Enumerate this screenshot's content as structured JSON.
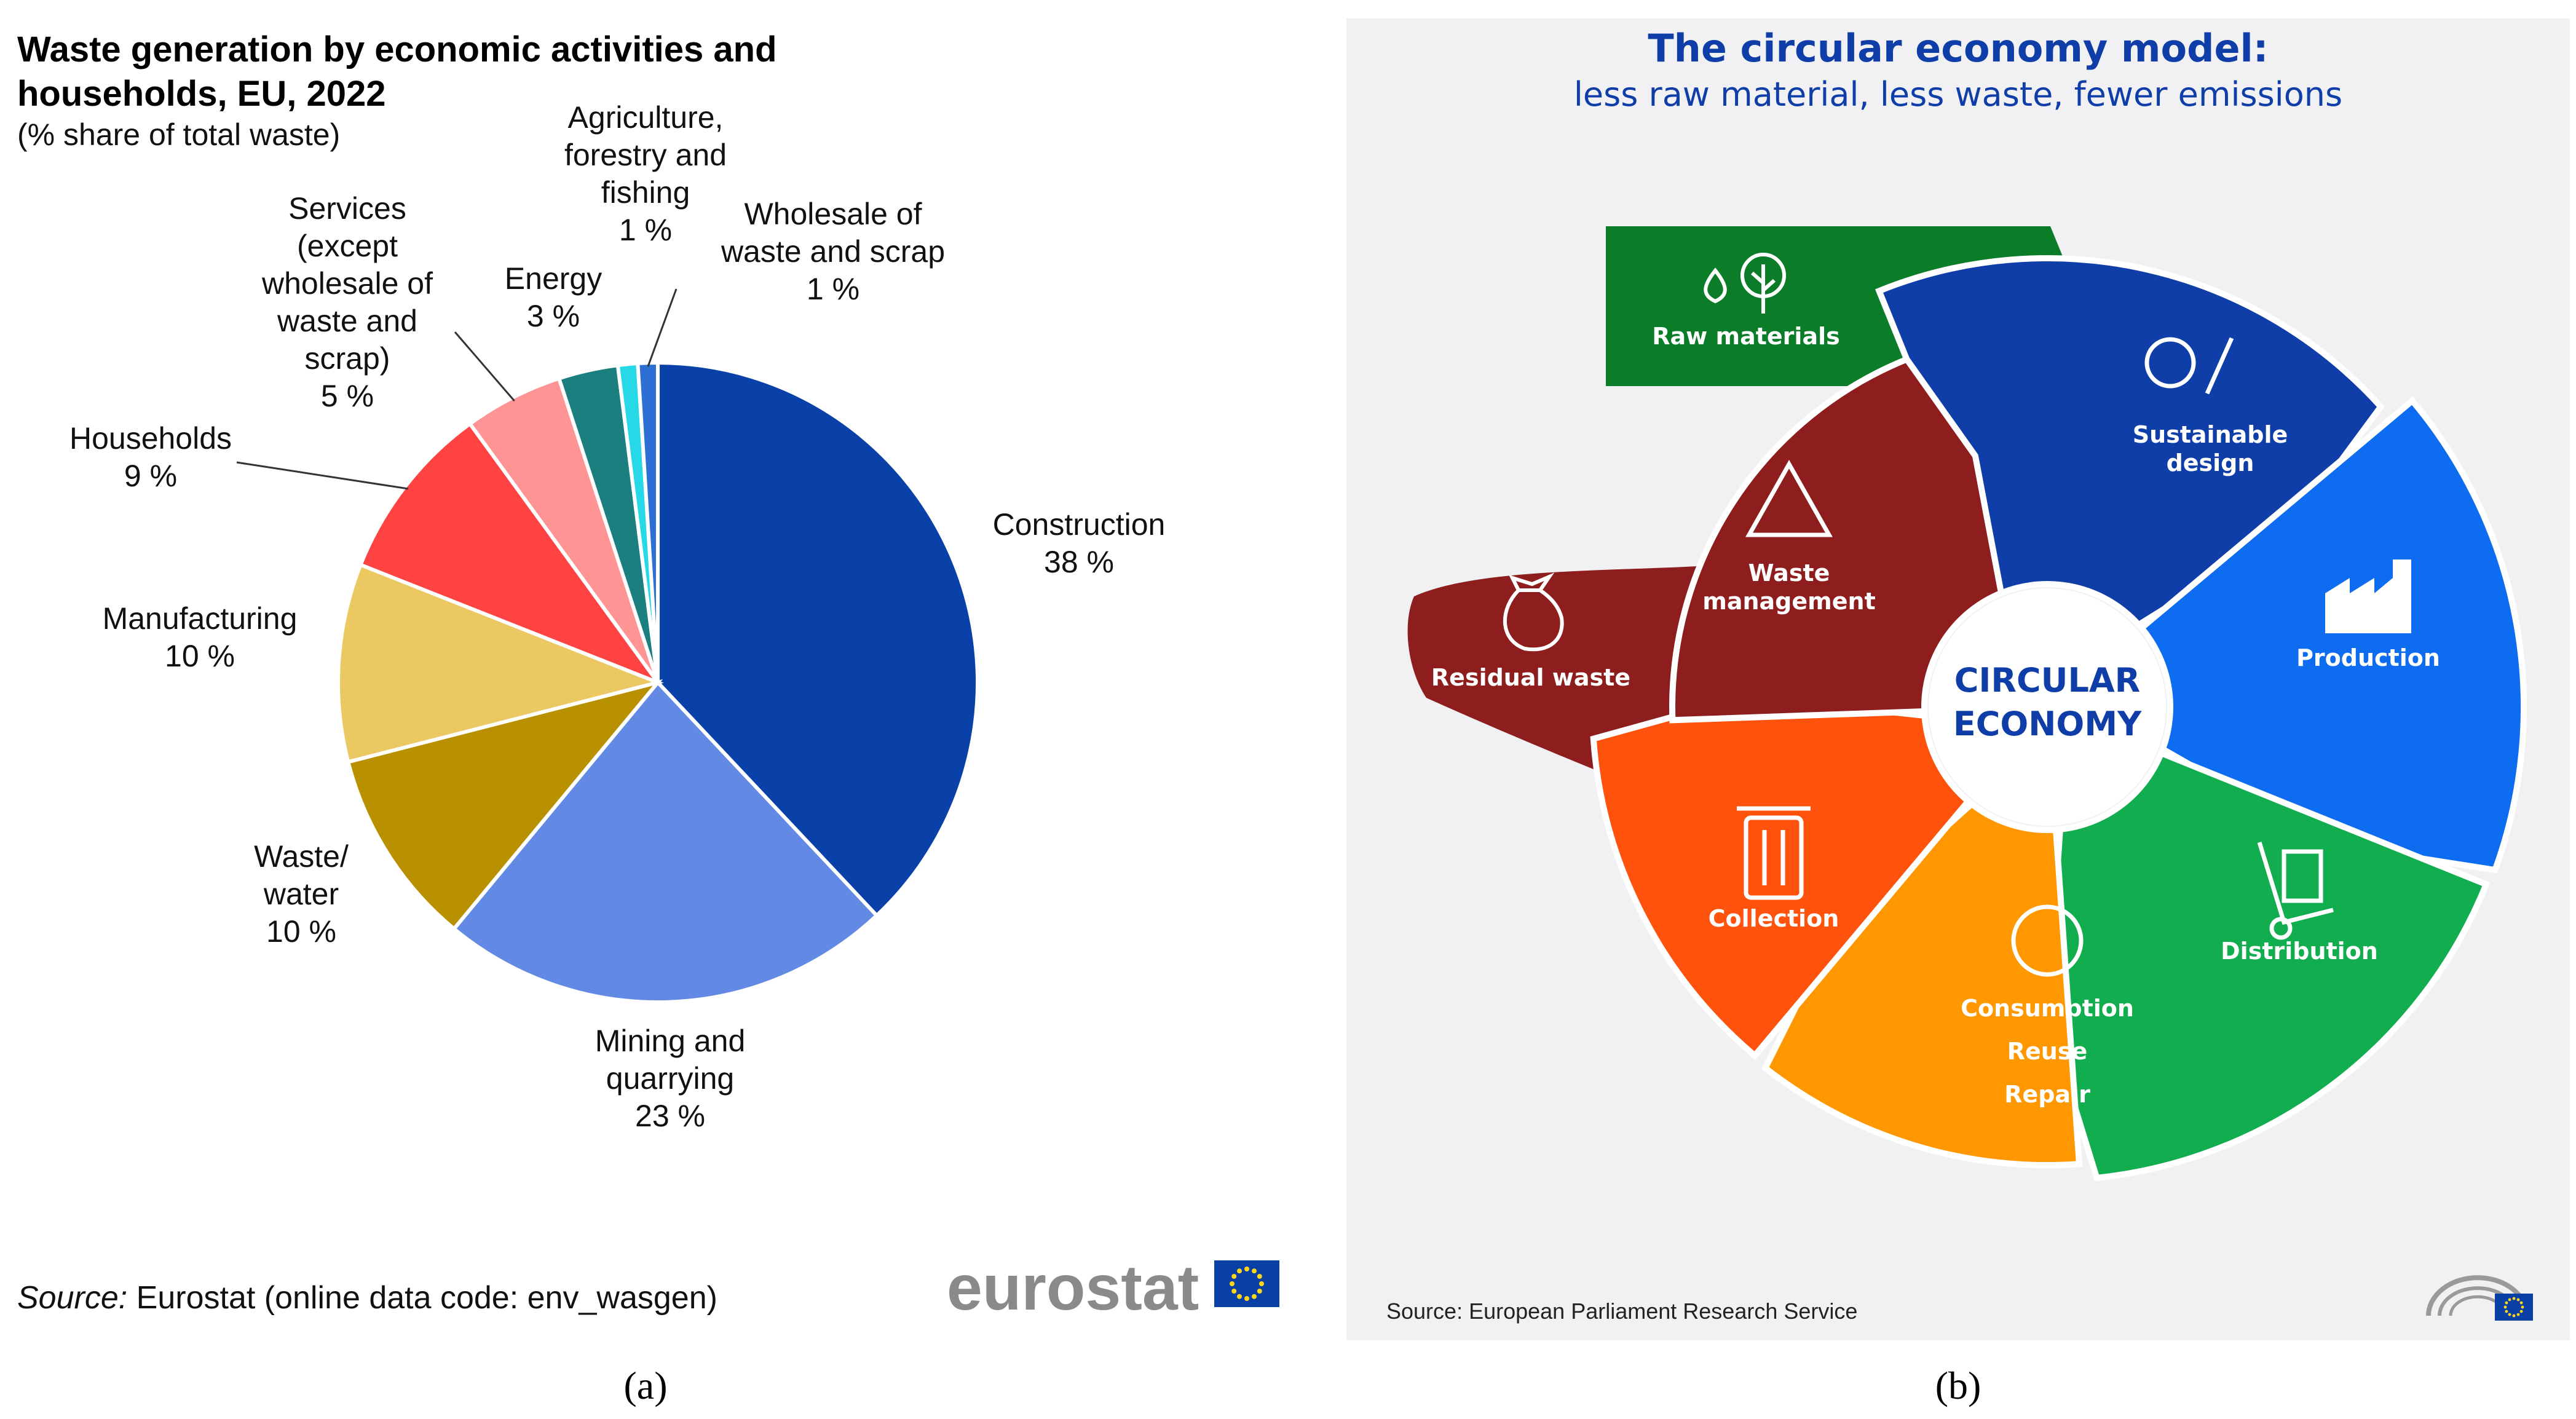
{
  "panel_a": {
    "title_line1": "Waste generation by economic activities and",
    "title_line2": "households, EU, 2022",
    "subtitle": "(% share of total waste)",
    "source_label": "Source:",
    "source_text": " Eurostat (online data code: env_wasgen)",
    "logo_text": "eurostat",
    "caption": "(a)"
  },
  "chart_data": {
    "type": "pie",
    "title": "Waste generation by economic activities and households, EU, 2022",
    "subtitle": "(% share of total waste)",
    "unit": "%",
    "slices": [
      {
        "label": [
          "Construction"
        ],
        "value": 38,
        "value_label": "38 %",
        "color": "#0a41a8"
      },
      {
        "label": [
          "Mining and",
          "quarrying"
        ],
        "value": 23,
        "value_label": "23 %",
        "color": "#6289e3"
      },
      {
        "label": [
          "Waste/",
          "water"
        ],
        "value": 10,
        "value_label": "10 %",
        "color": "#b89000"
      },
      {
        "label": [
          "Manufacturing"
        ],
        "value": 10,
        "value_label": "10 %",
        "color": "#ecc863"
      },
      {
        "label": [
          "Households"
        ],
        "value": 9,
        "value_label": "9 %",
        "color": "#ff4343"
      },
      {
        "label": [
          "Services",
          "(except",
          "wholesale of",
          "waste and",
          "scrap)"
        ],
        "value": 5,
        "value_label": "5 %",
        "color": "#ff9494"
      },
      {
        "label": [
          "Energy"
        ],
        "value": 3,
        "value_label": "3 %",
        "color": "#1b7f7f"
      },
      {
        "label": [
          "Agriculture,",
          "forestry and",
          "fishing"
        ],
        "value": 1,
        "value_label": "1 %",
        "color": "#27d9e6"
      },
      {
        "label": [
          "Wholesale of",
          "waste and scrap"
        ],
        "value": 1,
        "value_label": "1 %",
        "color": "#2d6fd2"
      }
    ]
  },
  "panel_b": {
    "title": "The circular economy model:",
    "subtitle": "less raw material, less waste, fewer emissions",
    "center_line1": "CIRCULAR",
    "center_line2": "ECONOMY",
    "raw_materials": "Raw materials",
    "residual_waste": "Residual waste",
    "segments": [
      {
        "lines": [
          "Sustainable",
          "design"
        ],
        "color": "#0f3ea8",
        "icon": "lightbulb-pencil-icon"
      },
      {
        "lines": [
          "Production"
        ],
        "color": "#0d6cf0",
        "icon": "factory-icon"
      },
      {
        "lines": [
          "Distribution"
        ],
        "color": "#11ad4f",
        "icon": "hand-truck-icon"
      },
      {
        "lines": [
          "Consumption",
          "Reuse",
          "Repair"
        ],
        "color": "#ff9800",
        "icon": "cycle-arrows-icon"
      },
      {
        "lines": [
          "Collection"
        ],
        "color": "#ff520d",
        "icon": "trash-bin-icon"
      },
      {
        "lines": [
          "Waste",
          "management"
        ],
        "color": "#8e1e1e",
        "icon": "recycle-icon"
      }
    ],
    "raw_color": "#0b7d28",
    "title_color": "#0f3ea8",
    "source": "Source: European Parliament Research Service",
    "caption": "(b)"
  }
}
